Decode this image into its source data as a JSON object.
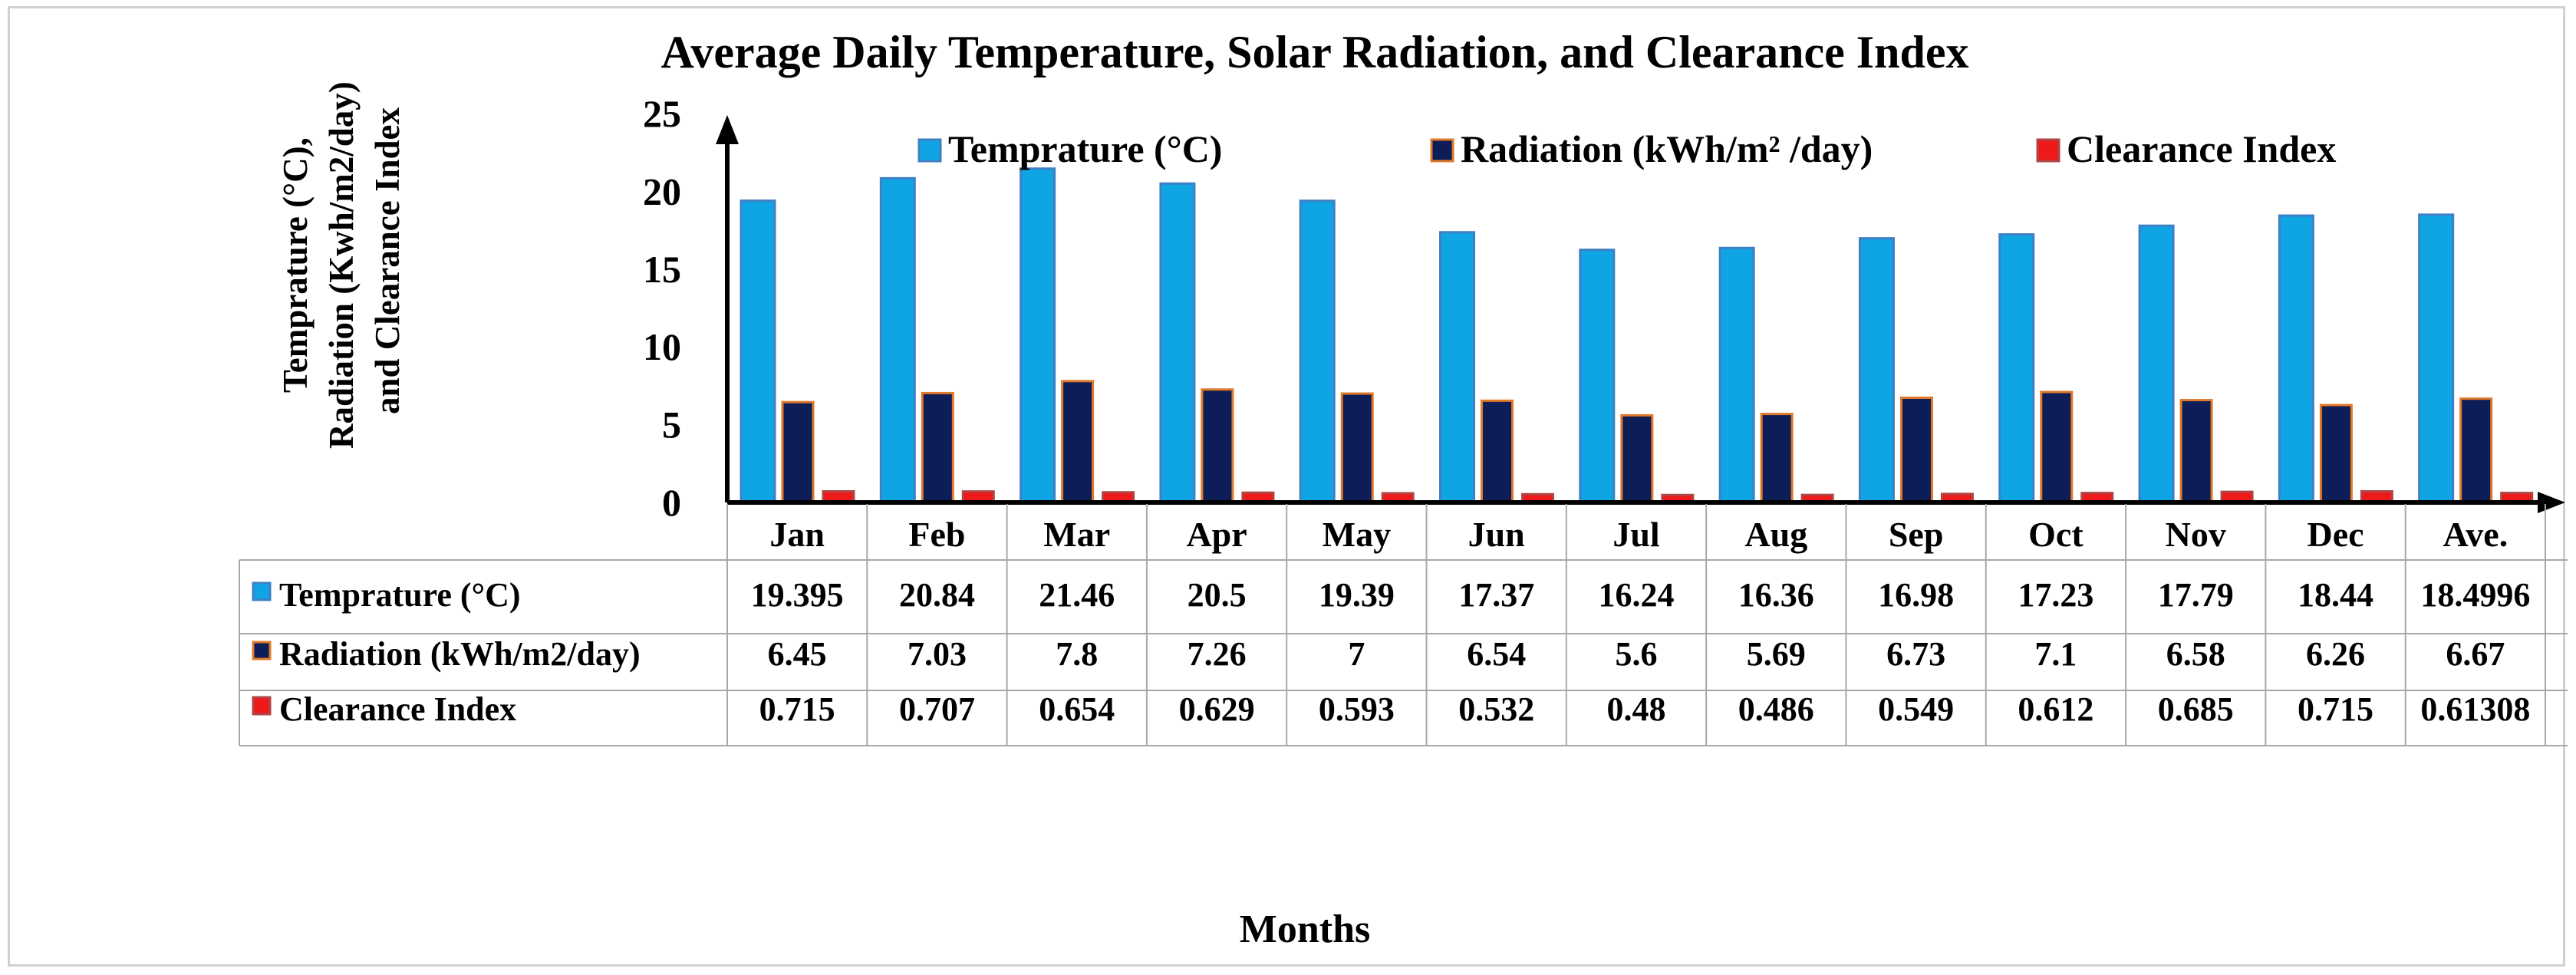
{
  "chart_data": {
    "type": "bar",
    "title": "Average Daily Temperature, Solar Radiation, and Clearance Index",
    "ylabel_lines": [
      "Temprature (°C),",
      "Radiation (Kwh/m2/day)",
      "and Clearance Index"
    ],
    "xlabel": "Months",
    "ylim": [
      0,
      25
    ],
    "yticks": [
      "0",
      "5",
      "10",
      "15",
      "20",
      "25"
    ],
    "categories": [
      "Jan",
      "Feb",
      "Mar",
      "Apr",
      "May",
      "Jun",
      "Jul",
      "Aug",
      "Sep",
      "Oct",
      "Nov",
      "Dec",
      "Ave."
    ],
    "series": [
      {
        "name": "Temprature (°C)",
        "legend_label": "Temprature (°C)",
        "table_label": "Temprature (°C)",
        "fill": "#0fa5e5",
        "stroke": "#3f7fc4",
        "values": [
          19.395,
          20.84,
          21.46,
          20.5,
          19.39,
          17.37,
          16.24,
          16.36,
          16.98,
          17.23,
          17.79,
          18.44,
          18.4996
        ],
        "value_labels": [
          "19.395",
          "20.84",
          "21.46",
          "20.5",
          "19.39",
          "17.37",
          "16.24",
          "16.36",
          "16.98",
          "17.23",
          "17.79",
          "18.44",
          "18.4996"
        ]
      },
      {
        "name": "Radiation (kWh/m2/day)",
        "legend_label": "Radiation (kWh/m² /day)",
        "table_label": "Radiation (kWh/m2/day)",
        "fill": "#0d1d57",
        "stroke": "#e0792a",
        "values": [
          6.45,
          7.03,
          7.8,
          7.26,
          7,
          6.54,
          5.6,
          5.69,
          6.73,
          7.1,
          6.58,
          6.26,
          6.67
        ],
        "value_labels": [
          "6.45",
          "7.03",
          "7.8",
          "7.26",
          "7",
          "6.54",
          "5.6",
          "5.69",
          "6.73",
          "7.1",
          "6.58",
          "6.26",
          "6.67"
        ]
      },
      {
        "name": "Clearance Index",
        "legend_label": "Clearance Index",
        "table_label": "Clearance Index",
        "fill": "#ee1a1a",
        "stroke": "#b04545",
        "values": [
          0.715,
          0.707,
          0.654,
          0.629,
          0.593,
          0.532,
          0.48,
          0.486,
          0.549,
          0.612,
          0.685,
          0.715,
          0.61308
        ],
        "value_labels": [
          "0.715",
          "0.707",
          "0.654",
          "0.629",
          "0.593",
          "0.532",
          "0.48",
          "0.486",
          "0.549",
          "0.612",
          "0.685",
          "0.715",
          "0.61308"
        ]
      }
    ]
  }
}
